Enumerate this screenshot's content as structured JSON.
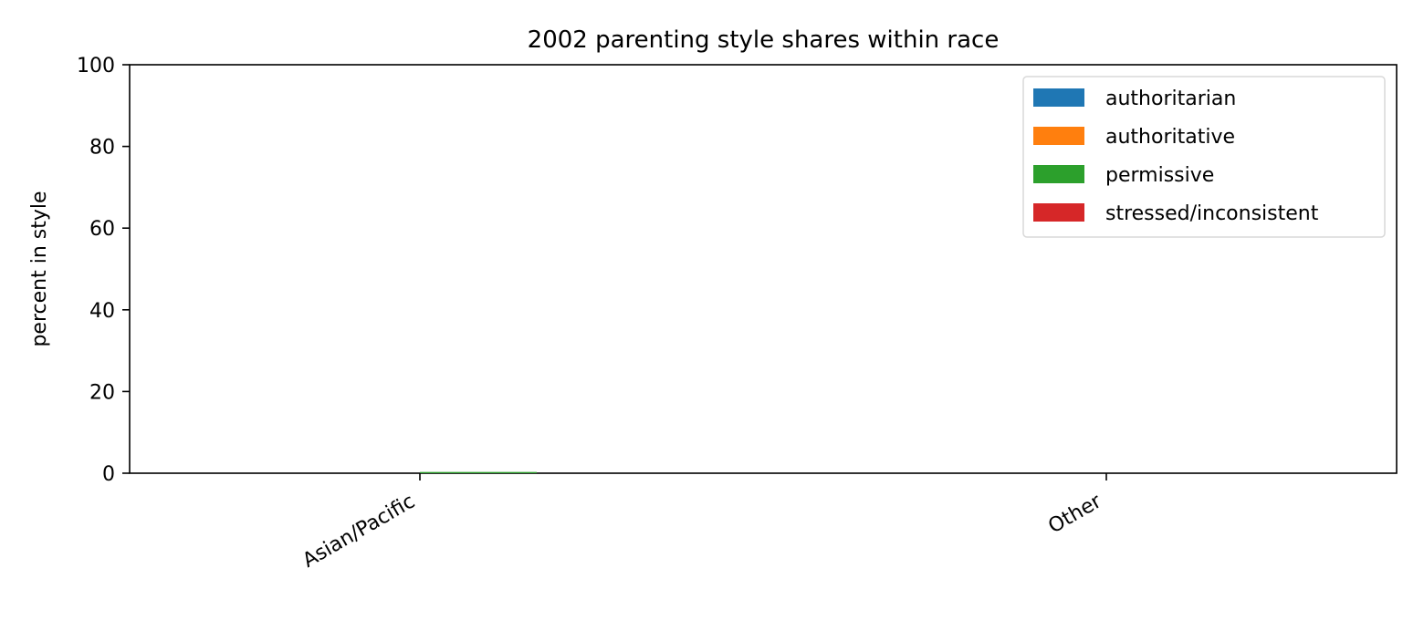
{
  "chart_data": {
    "type": "bar",
    "title": "2002 parenting style shares within race",
    "xlabel": "",
    "ylabel": "percent in style",
    "categories": [
      "Asian/Pacific",
      "Other"
    ],
    "ylim": [
      0,
      100
    ],
    "yticks": [
      0,
      20,
      40,
      60,
      80,
      100
    ],
    "grid": false,
    "legend_position": "top-right",
    "series": [
      {
        "name": "authoritarian",
        "color": "#1f77b4",
        "values": [
          0,
          0
        ]
      },
      {
        "name": "authoritative",
        "color": "#ff7f0e",
        "values": [
          0,
          0
        ]
      },
      {
        "name": "permissive",
        "color": "#2ca02c",
        "values": [
          0.3,
          0
        ]
      },
      {
        "name": "stressed/inconsistent",
        "color": "#d62728",
        "values": [
          0,
          0
        ]
      }
    ]
  }
}
